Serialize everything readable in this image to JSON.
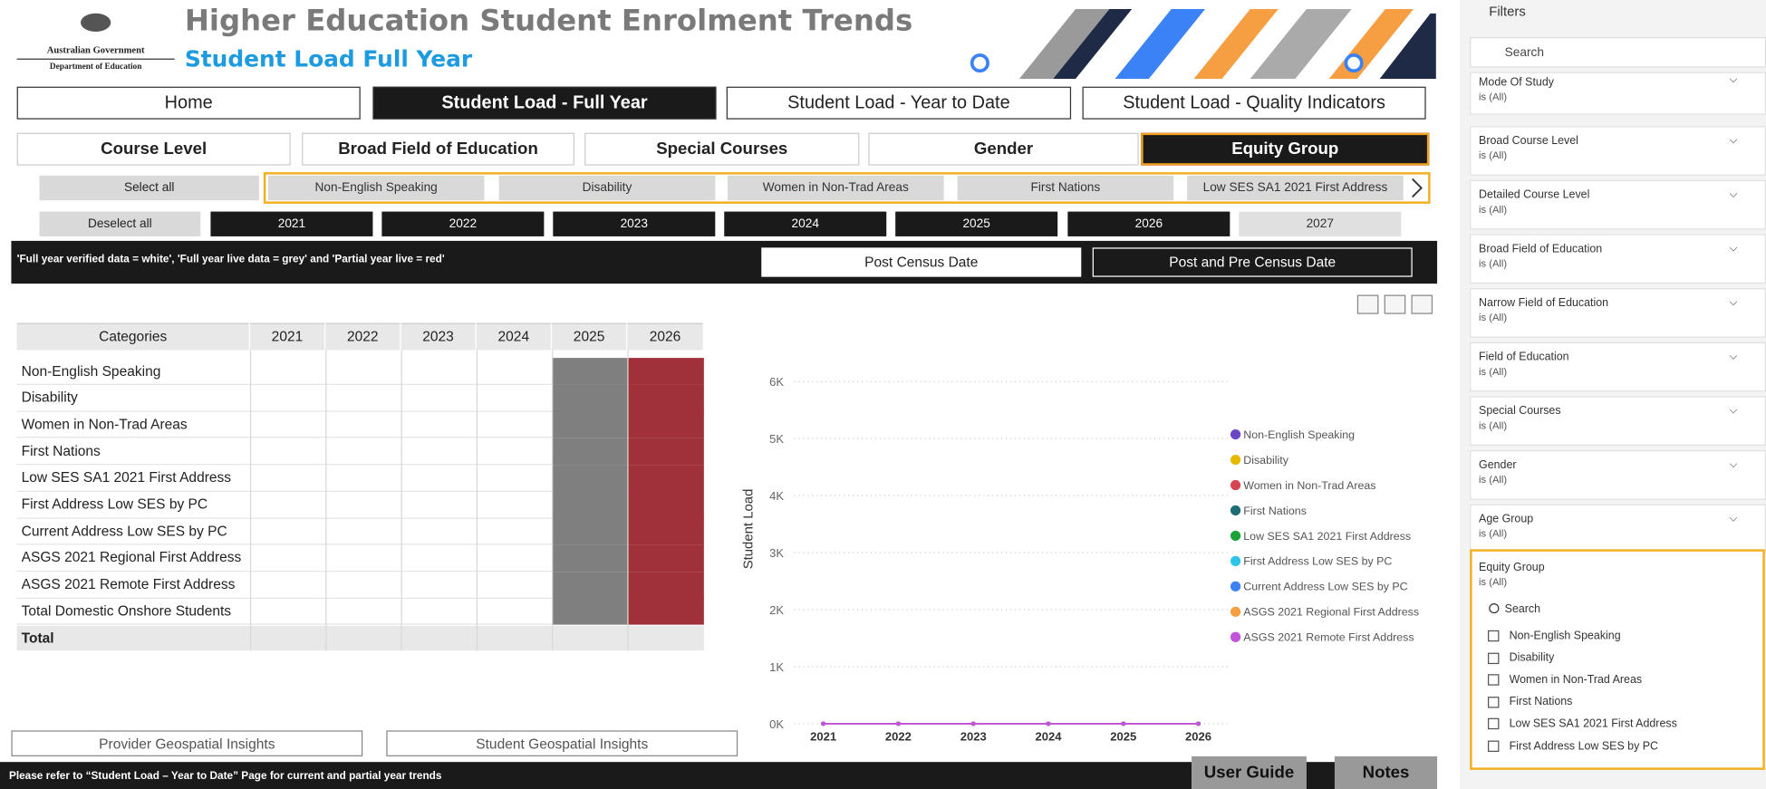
{
  "header": {
    "logo": {
      "line1": "Australian Government",
      "line2": "Department of Education"
    },
    "title": "Higher Education Student Enrolment Trends",
    "subtitle": "Student Load Full Year"
  },
  "nav": [
    {
      "label": "Home"
    },
    {
      "label": "Student Load - Full Year",
      "selected": true
    },
    {
      "label": "Student Load - Year to Date"
    },
    {
      "label": "Student Load - Quality Indicators"
    }
  ],
  "subnav": [
    {
      "label": "Course Level"
    },
    {
      "label": "Broad Field of Education"
    },
    {
      "label": "Special Courses"
    },
    {
      "label": "Gender"
    },
    {
      "label": "Equity Group",
      "selected": true
    }
  ],
  "select_all": "Select all",
  "deselect_all": "Deselect all",
  "equity_buttons": [
    "Non-English Speaking",
    "Disability",
    "Women in Non-Trad Areas",
    "First Nations",
    "Low SES SA1 2021 First Address"
  ],
  "years": [
    {
      "label": "2021",
      "selected": true
    },
    {
      "label": "2022",
      "selected": true
    },
    {
      "label": "2023",
      "selected": true
    },
    {
      "label": "2024",
      "selected": true
    },
    {
      "label": "2025",
      "selected": true
    },
    {
      "label": "2026",
      "selected": true
    },
    {
      "label": "2027",
      "selected": false
    }
  ],
  "banner": {
    "note": "'Full year verified data = white', 'Full year live data = grey' and 'Partial year live = red'",
    "buttons": [
      {
        "label": "Post Census Date"
      },
      {
        "label": "Post and Pre Census Date",
        "selected": true
      }
    ]
  },
  "table": {
    "columns": [
      "Categories",
      "2021",
      "2022",
      "2023",
      "2024",
      "2025",
      "2026"
    ],
    "rows": [
      "Non-English Speaking",
      "Disability",
      "Women in Non-Trad Areas",
      "First Nations",
      "Low SES SA1 2021 First Address",
      "First Address Low SES by PC",
      "Current Address Low SES by PC",
      "ASGS 2021 Regional First Address",
      "ASGS 2021 Remote First Address",
      "Total Domestic Onshore Students"
    ],
    "total": "Total"
  },
  "chart_data": {
    "type": "line",
    "y_label": "Student Load",
    "categories": [
      "2021",
      "2022",
      "2023",
      "2024",
      "2025",
      "2026"
    ],
    "ylim": [
      0,
      6000
    ],
    "yticks": [
      {
        "value": 0,
        "label": "0K"
      },
      {
        "value": 1000,
        "label": "1K"
      },
      {
        "value": 2000,
        "label": "2K"
      },
      {
        "value": 3000,
        "label": "3K"
      },
      {
        "value": 4000,
        "label": "4K"
      },
      {
        "value": 5000,
        "label": "5K"
      },
      {
        "value": 6000,
        "label": "6K"
      }
    ],
    "grid": true,
    "series": [
      {
        "name": "Non-English Speaking",
        "color": "#6b47c8",
        "values": [
          0,
          0,
          0,
          0,
          0,
          0
        ]
      },
      {
        "name": "Disability",
        "color": "#e6b800",
        "values": [
          0,
          0,
          0,
          0,
          0,
          0
        ]
      },
      {
        "name": "Women in Non-Trad Areas",
        "color": "#d64550",
        "values": [
          0,
          0,
          0,
          0,
          0,
          0
        ]
      },
      {
        "name": "First Nations",
        "color": "#1f6b75",
        "values": [
          0,
          0,
          0,
          0,
          0,
          0
        ]
      },
      {
        "name": "Low SES SA1 2021 First Address",
        "color": "#1ba338",
        "values": [
          0,
          0,
          0,
          0,
          0,
          0
        ]
      },
      {
        "name": "First Address Low SES by PC",
        "color": "#2ec4e8",
        "values": [
          0,
          0,
          0,
          0,
          0,
          0
        ]
      },
      {
        "name": "Current Address Low SES by PC",
        "color": "#3b82f6",
        "values": [
          0,
          0,
          0,
          0,
          0,
          0
        ]
      },
      {
        "name": "ASGS 2021 Regional First Address",
        "color": "#f59e42",
        "values": [
          0,
          0,
          0,
          0,
          0,
          0
        ]
      },
      {
        "name": "ASGS 2021 Remote First Address",
        "color": "#c154d8",
        "values": [
          0,
          0,
          0,
          0,
          0,
          0
        ]
      }
    ]
  },
  "links": [
    "Provider Geospatial Insights",
    "Student Geospatial Insights"
  ],
  "footer": {
    "note": "Please refer to “Student Load – Year to Date” Page for current and partial year trends",
    "buttons": [
      "User Guide",
      "Notes"
    ]
  },
  "filters": {
    "title": "Filters",
    "search": "Search",
    "cards": [
      {
        "name": "Mode Of Study",
        "state": "is (All)"
      },
      {
        "name": "Broad Course Level",
        "state": "is (All)"
      },
      {
        "name": "Detailed Course Level",
        "state": "is (All)"
      },
      {
        "name": "Broad Field of Education",
        "state": "is (All)"
      },
      {
        "name": "Narrow Field of Education",
        "state": "is (All)"
      },
      {
        "name": "Field of Education",
        "state": "is (All)"
      },
      {
        "name": "Special Courses",
        "state": "is (All)"
      },
      {
        "name": "Gender",
        "state": "is (All)"
      },
      {
        "name": "Age Group",
        "state": "is (All)"
      }
    ],
    "expanded": {
      "name": "Equity Group",
      "state": "is (All)",
      "search": "Search",
      "options": [
        "Non-English Speaking",
        "Disability",
        "Women in Non-Trad Areas",
        "First Nations",
        "Low SES SA1 2021 First Address",
        "First Address Low SES by PC"
      ]
    }
  }
}
